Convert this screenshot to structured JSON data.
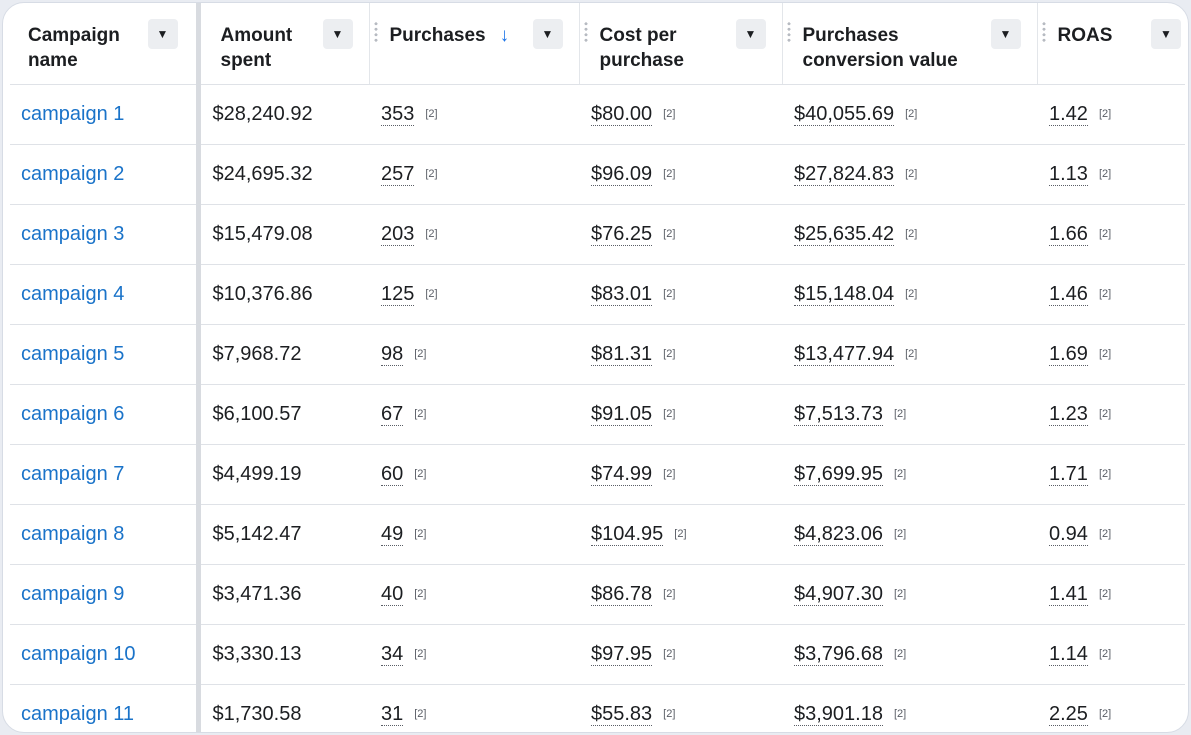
{
  "columns": [
    {
      "label": "Campaign name",
      "line1": "Campaign",
      "line2": "name"
    },
    {
      "label": "Amount spent",
      "line1": "Amount",
      "line2": "spent"
    },
    {
      "label": "Purchases",
      "line1": "Purchases",
      "line2": "",
      "sort_icon": "↓"
    },
    {
      "label": "Cost per purchase",
      "line1": "Cost per",
      "line2": "purchase"
    },
    {
      "label": "Purchases conversion value",
      "line1": "Purchases",
      "line2": "conversion value"
    },
    {
      "label": "ROAS",
      "line1": "ROAS",
      "line2": ""
    }
  ],
  "menu_icon": "▼",
  "footnote_marker": "[2]",
  "sort": {
    "column": "Purchases",
    "direction": "descending"
  },
  "colors": {
    "link": "#1a73c9",
    "sort_arrow": "#1a73e8",
    "text": "#1c1e21"
  },
  "rows": [
    {
      "campaign": "campaign 1",
      "amount_spent": "$28,240.92",
      "purchases": "353",
      "cost_per_purchase": "$80.00",
      "conversion_value": "$40,055.69",
      "roas": "1.42"
    },
    {
      "campaign": "campaign 2",
      "amount_spent": "$24,695.32",
      "purchases": "257",
      "cost_per_purchase": "$96.09",
      "conversion_value": "$27,824.83",
      "roas": "1.13"
    },
    {
      "campaign": "campaign 3",
      "amount_spent": "$15,479.08",
      "purchases": "203",
      "cost_per_purchase": "$76.25",
      "conversion_value": "$25,635.42",
      "roas": "1.66"
    },
    {
      "campaign": "campaign 4",
      "amount_spent": "$10,376.86",
      "purchases": "125",
      "cost_per_purchase": "$83.01",
      "conversion_value": "$15,148.04",
      "roas": "1.46"
    },
    {
      "campaign": "campaign 5",
      "amount_spent": "$7,968.72",
      "purchases": "98",
      "cost_per_purchase": "$81.31",
      "conversion_value": "$13,477.94",
      "roas": "1.69"
    },
    {
      "campaign": "campaign 6",
      "amount_spent": "$6,100.57",
      "purchases": "67",
      "cost_per_purchase": "$91.05",
      "conversion_value": "$7,513.73",
      "roas": "1.23"
    },
    {
      "campaign": "campaign 7",
      "amount_spent": "$4,499.19",
      "purchases": "60",
      "cost_per_purchase": "$74.99",
      "conversion_value": "$7,699.95",
      "roas": "1.71"
    },
    {
      "campaign": "campaign 8",
      "amount_spent": "$5,142.47",
      "purchases": "49",
      "cost_per_purchase": "$104.95",
      "conversion_value": "$4,823.06",
      "roas": "0.94"
    },
    {
      "campaign": "campaign 9",
      "amount_spent": "$3,471.36",
      "purchases": "40",
      "cost_per_purchase": "$86.78",
      "conversion_value": "$4,907.30",
      "roas": "1.41"
    },
    {
      "campaign": "campaign 10",
      "amount_spent": "$3,330.13",
      "purchases": "34",
      "cost_per_purchase": "$97.95",
      "conversion_value": "$3,796.68",
      "roas": "1.14"
    },
    {
      "campaign": "campaign 11",
      "amount_spent": "$1,730.58",
      "purchases": "31",
      "cost_per_purchase": "$55.83",
      "conversion_value": "$3,901.18",
      "roas": "2.25"
    }
  ]
}
